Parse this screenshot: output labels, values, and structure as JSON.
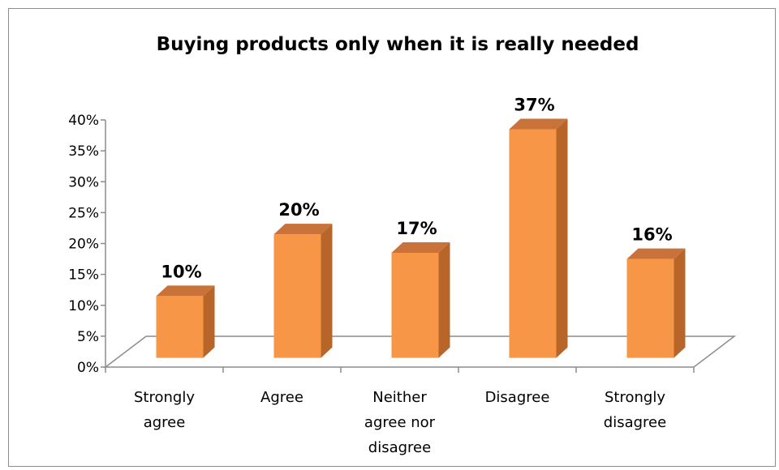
{
  "chart_data": {
    "type": "bar",
    "title": "Buying products only when it is really needed",
    "categories": [
      [
        "Strongly",
        "agree"
      ],
      [
        "Agree"
      ],
      [
        "Neither",
        "agree nor",
        "disagree"
      ],
      [
        "Disagree"
      ],
      [
        "Strongly",
        "disagree"
      ]
    ],
    "values": [
      10,
      20,
      17,
      37,
      16
    ],
    "data_labels": [
      "10%",
      "20%",
      "17%",
      "37%",
      "16%"
    ],
    "y_ticks": [
      "0%",
      "5%",
      "10%",
      "15%",
      "20%",
      "25%",
      "30%",
      "35%",
      "40%"
    ],
    "ylim": [
      0,
      40
    ],
    "xlabel": "",
    "ylabel": "",
    "grid": false,
    "legend": "none",
    "style": "3d-column",
    "colors": {
      "bar_front": "#f79646",
      "bar_side": "#b8652a",
      "bar_top": "#c9733a",
      "floor_line": "#8c8c8c"
    }
  }
}
